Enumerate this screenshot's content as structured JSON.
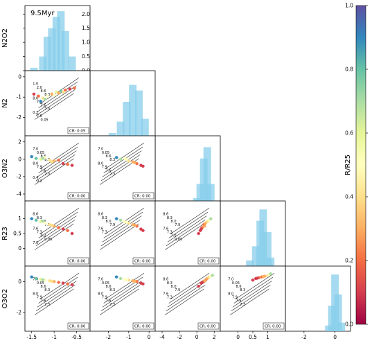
{
  "chart_data": {
    "type": "scatter",
    "title": "9.5Myr",
    "variables": [
      "N2O2",
      "N2",
      "O3N2",
      "R23",
      "O3O2"
    ],
    "ranges": {
      "N2O2": [
        -1.65,
        -0.2
      ],
      "N2": [
        -2.9,
        0.3
      ],
      "O3N2": [
        -4.8,
        2.7
      ],
      "R23": [
        -0.6,
        1.6
      ],
      "O3O2": [
        -3.2,
        1.0
      ]
    },
    "ticks": {
      "N2O2": [
        -1.5,
        -1.0,
        -0.5
      ],
      "N2": [
        -2,
        -1,
        0
      ],
      "O3N2": [
        -4,
        -2,
        0,
        2
      ],
      "R23": [
        0.0,
        0.5,
        1.0
      ],
      "O3O2": [
        -2,
        0
      ]
    },
    "diag_ticks": [
      0.0,
      0.5,
      1.0,
      1.5,
      2.0
    ],
    "diag_ylim": [
      0,
      2.3
    ],
    "colorbar": {
      "label": "R/R25",
      "range": [
        0.0,
        1.0
      ],
      "ticks": [
        0.0,
        0.2,
        0.4,
        0.6,
        0.8,
        1.0
      ]
    },
    "histograms": {
      "N2O2": {
        "x": [
          -1.45,
          -1.25,
          -1.15,
          -1.05,
          -0.95,
          -0.85,
          -0.75,
          -0.6
        ],
        "y": [
          0.1,
          0.5,
          1.2,
          1.5,
          1.9,
          2.1,
          1.4,
          0.5
        ]
      },
      "N2": {
        "x": [
          -1.8,
          -1.4,
          -1.1,
          -0.8,
          -0.5,
          -0.2
        ],
        "y": [
          0.1,
          0.5,
          1.2,
          1.8,
          1.6,
          0.6
        ]
      },
      "O3N2": {
        "x": [
          0.0,
          0.4,
          0.8,
          1.2,
          1.6
        ],
        "y": [
          0.1,
          0.6,
          1.5,
          1.9,
          0.6
        ]
      },
      "R23": {
        "x": [
          0.4,
          0.6,
          0.75,
          0.85,
          1.0,
          1.1
        ],
        "y": [
          0.2,
          0.7,
          1.6,
          2.0,
          1.2,
          0.3
        ]
      },
      "O3O2": {
        "x": [
          -0.4,
          -0.2,
          0.0,
          0.2,
          0.4
        ],
        "y": [
          0.2,
          0.9,
          2.0,
          1.3,
          0.3
        ]
      }
    },
    "panels": [
      {
        "x": "N2O2",
        "y": "N2",
        "cr": "CR: 0.05",
        "points": [
          [
            -1.45,
            -0.85,
            0.1
          ],
          [
            -1.35,
            -0.95,
            0.2
          ],
          [
            -1.25,
            -1.05,
            0.4
          ],
          [
            -1.15,
            -0.95,
            0.5
          ],
          [
            -1.05,
            -0.85,
            0.3
          ],
          [
            -0.95,
            -0.75,
            0.6
          ],
          [
            -0.85,
            -0.7,
            0.8
          ],
          [
            -0.75,
            -0.65,
            0.2
          ],
          [
            -0.65,
            -0.6,
            0.1
          ],
          [
            -0.55,
            -0.55,
            0.15
          ],
          [
            -1.3,
            -1.2,
            0.9
          ],
          [
            -1.2,
            -1.1,
            0.7
          ],
          [
            -1.0,
            -0.9,
            0.45
          ],
          [
            -0.9,
            -0.8,
            0.25
          ],
          [
            -0.8,
            -0.75,
            0.35
          ]
        ],
        "grid_labels": [
          "1.0",
          "2.0",
          "8.6",
          "8.3",
          "8.0",
          "7.9",
          "7.6",
          "7.3",
          "0.2",
          "7.0",
          "0.05"
        ]
      },
      {
        "x": "N2O2",
        "y": "O3N2",
        "cr": "CR: 0.00",
        "points": [
          [
            -1.5,
            0.3,
            0.9
          ],
          [
            -1.4,
            0.1,
            0.8
          ],
          [
            -1.3,
            0.0,
            0.6
          ],
          [
            -1.2,
            0.2,
            0.5
          ],
          [
            -1.1,
            -0.1,
            0.4
          ],
          [
            -1.0,
            -0.2,
            0.3
          ],
          [
            -0.9,
            -0.1,
            0.2
          ],
          [
            -0.8,
            -0.5,
            0.1
          ],
          [
            -0.7,
            -0.6,
            0.15
          ],
          [
            -0.6,
            -0.7,
            0.05
          ],
          [
            -1.25,
            0.1,
            0.7
          ],
          [
            -1.05,
            -0.3,
            0.35
          ]
        ],
        "grid_labels": [
          "7.0",
          "0.05",
          "8.6",
          "8.3",
          "8.0",
          "7.9",
          "7.6",
          "7.3",
          "0.4",
          "0.2"
        ]
      },
      {
        "x": "N2",
        "y": "O3N2",
        "cr": "CR: 0.00",
        "points": [
          [
            -1.6,
            0.2,
            0.9
          ],
          [
            -1.4,
            0.0,
            0.7
          ],
          [
            -1.2,
            0.1,
            0.5
          ],
          [
            -1.0,
            -0.2,
            0.4
          ],
          [
            -0.8,
            -0.3,
            0.3
          ],
          [
            -0.6,
            -0.5,
            0.2
          ],
          [
            -0.4,
            -0.7,
            0.1
          ],
          [
            -0.3,
            -0.8,
            0.05
          ],
          [
            -1.1,
            0.0,
            0.45
          ],
          [
            -0.7,
            -0.4,
            0.25
          ]
        ],
        "grid_labels": [
          "7.0",
          "0.05",
          "8.6",
          "8.3",
          "8.0",
          "7.9",
          "7.6",
          "7.3"
        ]
      },
      {
        "x": "N2O2",
        "y": "R23",
        "cr": "CR: 0.00",
        "points": [
          [
            -1.5,
            1.0,
            0.9
          ],
          [
            -1.4,
            0.95,
            0.8
          ],
          [
            -1.3,
            0.9,
            0.6
          ],
          [
            -1.2,
            0.85,
            0.5
          ],
          [
            -1.1,
            0.8,
            0.4
          ],
          [
            -1.0,
            0.75,
            0.3
          ],
          [
            -0.9,
            0.7,
            0.2
          ],
          [
            -0.8,
            0.65,
            0.1
          ],
          [
            -0.7,
            0.6,
            0.15
          ],
          [
            -0.6,
            0.5,
            0.05
          ],
          [
            -1.25,
            0.92,
            0.7
          ],
          [
            -1.05,
            0.78,
            0.35
          ]
        ],
        "grid_labels": [
          "8.6",
          "8.3",
          "8.0",
          "7.9",
          "7.6",
          "7.3",
          "0.2",
          "0.05",
          "7.0"
        ]
      },
      {
        "x": "N2",
        "y": "R23",
        "cr": "CR: 0.00",
        "points": [
          [
            -1.6,
            1.0,
            0.9
          ],
          [
            -1.4,
            0.95,
            0.7
          ],
          [
            -1.2,
            0.9,
            0.5
          ],
          [
            -1.0,
            0.85,
            0.4
          ],
          [
            -0.8,
            0.8,
            0.3
          ],
          [
            -0.6,
            0.75,
            0.2
          ],
          [
            -0.4,
            0.65,
            0.1
          ],
          [
            -0.3,
            0.6,
            0.05
          ],
          [
            -1.1,
            0.88,
            0.45
          ],
          [
            -0.7,
            0.78,
            0.25
          ]
        ],
        "grid_labels": [
          "8.6",
          "8.3",
          "8.0",
          "7.9",
          "7.6",
          "7.3"
        ]
      },
      {
        "x": "O3N2",
        "y": "R23",
        "cr": "CR: 0.00",
        "points": [
          [
            0.2,
            0.5,
            0.05
          ],
          [
            0.4,
            0.6,
            0.1
          ],
          [
            0.6,
            0.7,
            0.15
          ],
          [
            0.8,
            0.8,
            0.2
          ],
          [
            1.0,
            0.85,
            0.3
          ],
          [
            1.2,
            0.9,
            0.4
          ],
          [
            1.4,
            0.95,
            0.5
          ],
          [
            1.6,
            1.0,
            0.7
          ],
          [
            0.9,
            0.75,
            0.25
          ],
          [
            0.5,
            0.65,
            0.12
          ]
        ],
        "grid_labels": [
          "8.6",
          "8.3",
          "8.0",
          "7.9",
          "7.6",
          "7.3",
          "7.0",
          "0.05"
        ]
      },
      {
        "x": "N2O2",
        "y": "O3O2",
        "cr": "CR: 0.00",
        "points": [
          [
            -1.5,
            0.3,
            0.9
          ],
          [
            -1.4,
            0.2,
            0.8
          ],
          [
            -1.3,
            0.15,
            0.6
          ],
          [
            -1.2,
            0.1,
            0.5
          ],
          [
            -1.1,
            0.05,
            0.4
          ],
          [
            -1.0,
            0.0,
            0.3
          ],
          [
            -0.9,
            -0.05,
            0.2
          ],
          [
            -0.8,
            -0.1,
            0.1
          ],
          [
            -0.7,
            -0.15,
            0.15
          ],
          [
            -0.6,
            -0.2,
            0.05
          ],
          [
            -1.25,
            0.12,
            0.7
          ],
          [
            -1.05,
            0.02,
            0.35
          ]
        ],
        "grid_labels": [
          "7.0",
          "0.05",
          "8.6",
          "8.3",
          "8.0",
          "7.9",
          "7.6",
          "7.3"
        ]
      },
      {
        "x": "N2",
        "y": "O3O2",
        "cr": "CR: 0.00",
        "points": [
          [
            -1.6,
            0.3,
            0.9
          ],
          [
            -1.4,
            0.2,
            0.7
          ],
          [
            -1.2,
            0.15,
            0.5
          ],
          [
            -1.0,
            0.1,
            0.4
          ],
          [
            -0.8,
            0.05,
            0.3
          ],
          [
            -0.6,
            0.0,
            0.2
          ],
          [
            -0.4,
            -0.1,
            0.1
          ],
          [
            -0.3,
            -0.15,
            0.05
          ],
          [
            -1.1,
            0.12,
            0.45
          ],
          [
            -0.7,
            0.02,
            0.25
          ]
        ],
        "grid_labels": [
          "7.0",
          "0.05",
          "8.6",
          "8.3",
          "8.0",
          "7.9",
          "7.6",
          "7.3"
        ]
      },
      {
        "x": "O3N2",
        "y": "O3O2",
        "cr": "CR: 0.00",
        "points": [
          [
            0.2,
            -0.3,
            0.05
          ],
          [
            0.5,
            -0.1,
            0.1
          ],
          [
            0.8,
            0.0,
            0.15
          ],
          [
            1.0,
            0.1,
            0.2
          ],
          [
            1.2,
            0.2,
            0.3
          ],
          [
            1.4,
            0.3,
            0.4
          ],
          [
            1.6,
            0.35,
            0.5
          ],
          [
            1.8,
            0.4,
            0.7
          ],
          [
            0.9,
            0.05,
            0.25
          ],
          [
            0.6,
            -0.05,
            0.12
          ]
        ],
        "grid_labels": [
          "8.6",
          "8.3",
          "8.0",
          "7.9",
          "7.6",
          "7.3"
        ]
      },
      {
        "x": "R23",
        "y": "O3O2",
        "cr": "CR: 0.00",
        "points": [
          [
            0.5,
            0.1,
            0.05
          ],
          [
            0.6,
            0.2,
            0.1
          ],
          [
            0.7,
            0.25,
            0.15
          ],
          [
            0.8,
            0.3,
            0.2
          ],
          [
            0.9,
            0.35,
            0.3
          ],
          [
            1.0,
            0.4,
            0.4
          ],
          [
            1.05,
            0.45,
            0.5
          ],
          [
            1.1,
            0.5,
            0.7
          ],
          [
            0.85,
            0.32,
            0.25
          ],
          [
            0.65,
            0.22,
            0.12
          ]
        ],
        "grid_labels": [
          "7.0",
          "0.05",
          "8.6",
          "8.3",
          "8.0",
          "7.9",
          "7.6",
          "7.3"
        ]
      }
    ]
  }
}
